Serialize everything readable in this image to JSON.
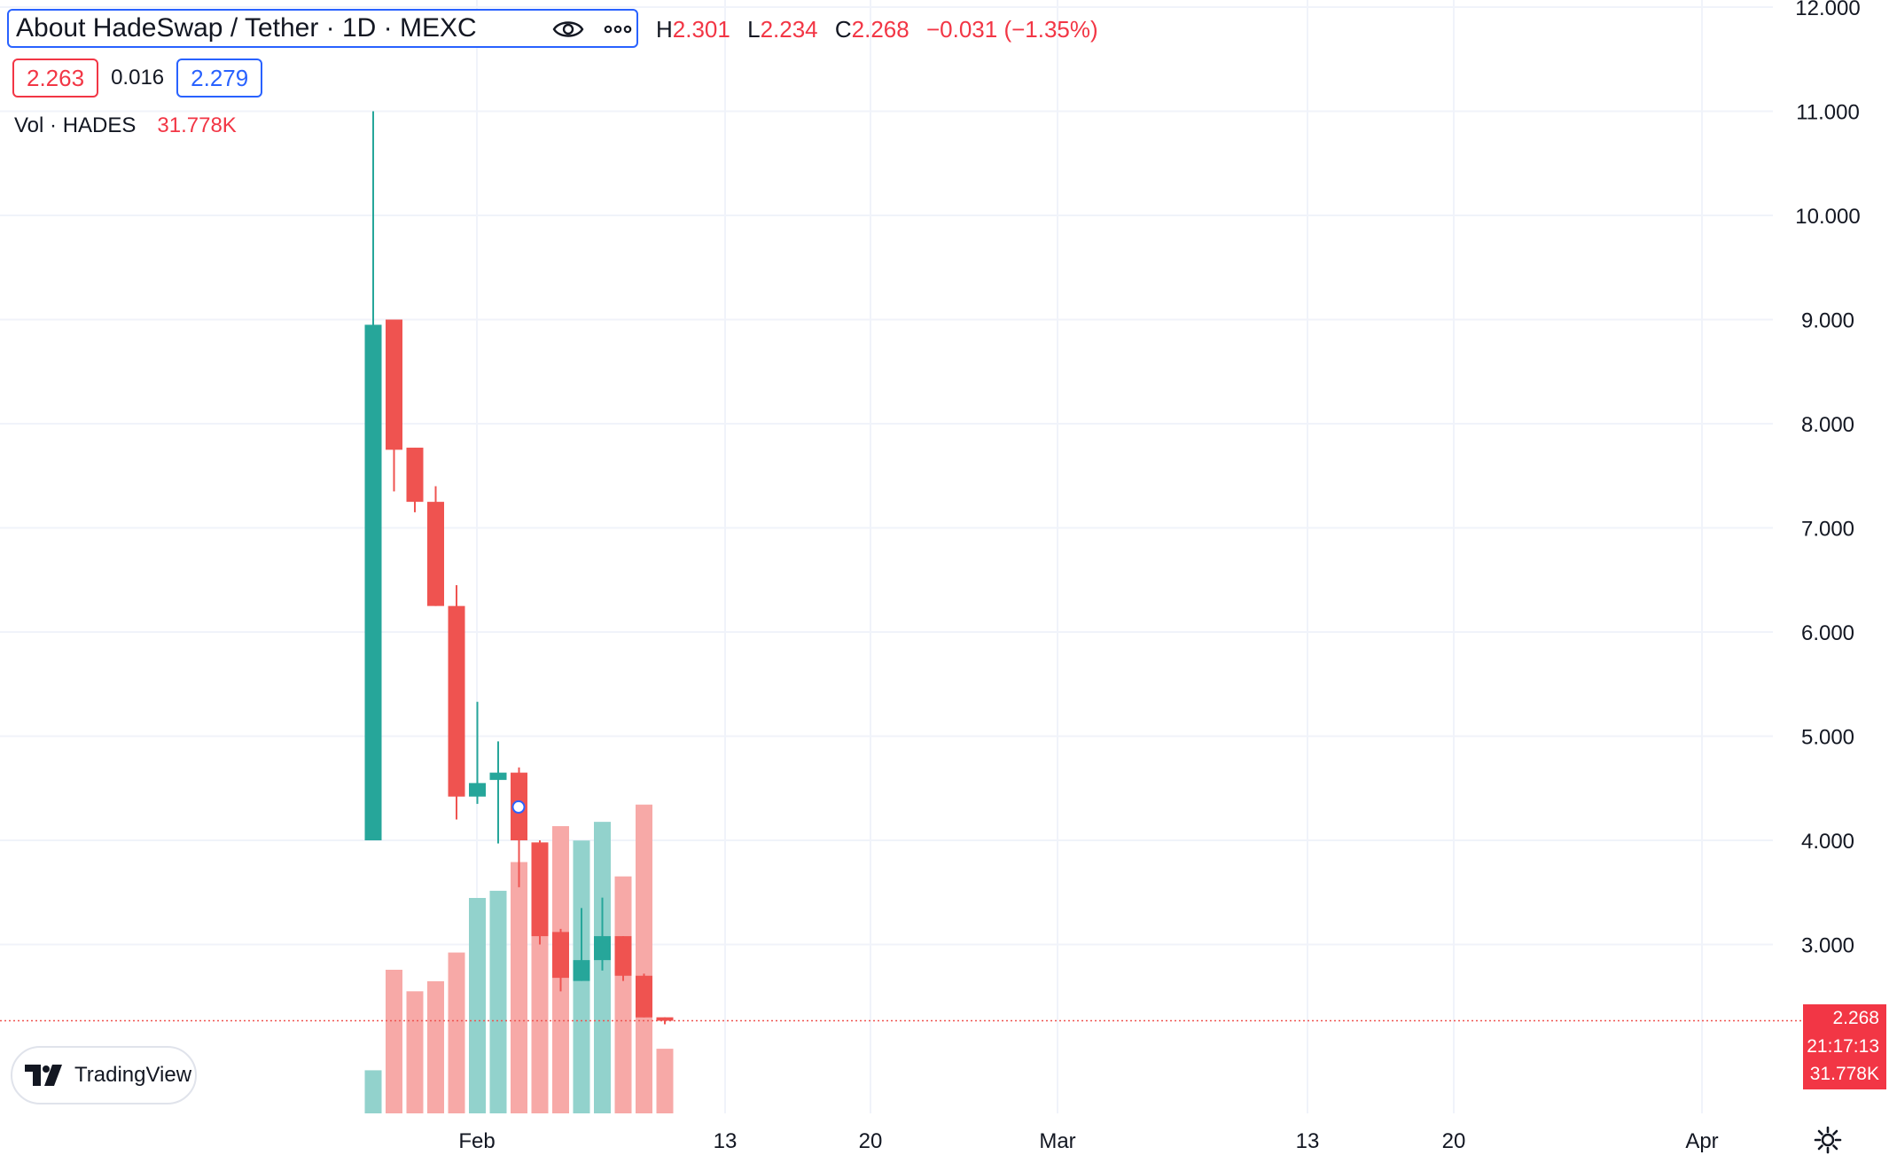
{
  "legend": {
    "title": "About HadeSwap / Tether · 1D · MEXC",
    "ohlc": {
      "h_label": "H",
      "h": "2.301",
      "l_label": "L",
      "l": "2.234",
      "c_label": "C",
      "c": "2.268",
      "change": "−0.031 (−1.35%)"
    },
    "sell_price": "2.263",
    "spread": "0.016",
    "buy_price": "2.279",
    "eye_icon": "eye-icon",
    "more_icon": "more-horizontal-icon"
  },
  "volume_legend": {
    "label": "Vol · HADES",
    "value": "31.778K"
  },
  "price_axis": {
    "labels": [
      "12.000",
      "11.000",
      "10.000",
      "9.000",
      "8.000",
      "7.000",
      "6.000",
      "5.000",
      "4.000",
      "3.000"
    ]
  },
  "time_axis": {
    "labels": [
      "Feb",
      "13",
      "20",
      "Mar",
      "13",
      "20",
      "Apr"
    ]
  },
  "last_price": {
    "price": "2.268",
    "countdown": "21:17:13",
    "volume": "31.778K"
  },
  "brand": {
    "name": "TradingView"
  },
  "colors": {
    "up": "#26a69a",
    "down": "#ef5350",
    "up_vol": "#92d2cc",
    "down_vol": "#f7a9a7",
    "grid": "#f0f3fa",
    "accent": "#2962ff"
  },
  "chart_data": {
    "type": "candlestick",
    "ylim": [
      2.0,
      12.0
    ],
    "candles": [
      {
        "o": 4.0,
        "h": 11.0,
        "l": 4.0,
        "c": 8.95,
        "vol": 0.3
      },
      {
        "o": 9.0,
        "h": 9.0,
        "l": 7.35,
        "c": 7.75,
        "vol": 1.0
      },
      {
        "o": 7.77,
        "h": 7.77,
        "l": 7.15,
        "c": 7.25,
        "vol": 0.85
      },
      {
        "o": 7.25,
        "h": 7.4,
        "l": 6.25,
        "c": 6.25,
        "vol": 0.92
      },
      {
        "o": 6.25,
        "h": 6.45,
        "l": 4.2,
        "c": 4.42,
        "vol": 1.12
      },
      {
        "o": 4.42,
        "h": 5.33,
        "l": 4.35,
        "c": 4.55,
        "vol": 1.5
      },
      {
        "o": 4.58,
        "h": 4.95,
        "l": 3.97,
        "c": 4.65,
        "vol": 1.55
      },
      {
        "o": 4.65,
        "h": 4.7,
        "l": 3.55,
        "c": 4.0,
        "vol": 1.75
      },
      {
        "o": 3.98,
        "h": 4.0,
        "l": 3.0,
        "c": 3.08,
        "vol": 1.85
      },
      {
        "o": 3.12,
        "h": 3.15,
        "l": 2.55,
        "c": 2.68,
        "vol": 2.0
      },
      {
        "o": 2.65,
        "h": 3.35,
        "l": 2.65,
        "c": 2.85,
        "vol": 1.9
      },
      {
        "o": 2.85,
        "h": 3.45,
        "l": 2.75,
        "c": 3.08,
        "vol": 2.03
      },
      {
        "o": 3.08,
        "h": 3.08,
        "l": 2.65,
        "c": 2.7,
        "vol": 1.65
      },
      {
        "o": 2.7,
        "h": 2.72,
        "l": 2.3,
        "c": 2.3,
        "vol": 2.15
      },
      {
        "o": 2.301,
        "h": 2.301,
        "l": 2.234,
        "c": 2.268,
        "vol": 0.45
      }
    ]
  }
}
